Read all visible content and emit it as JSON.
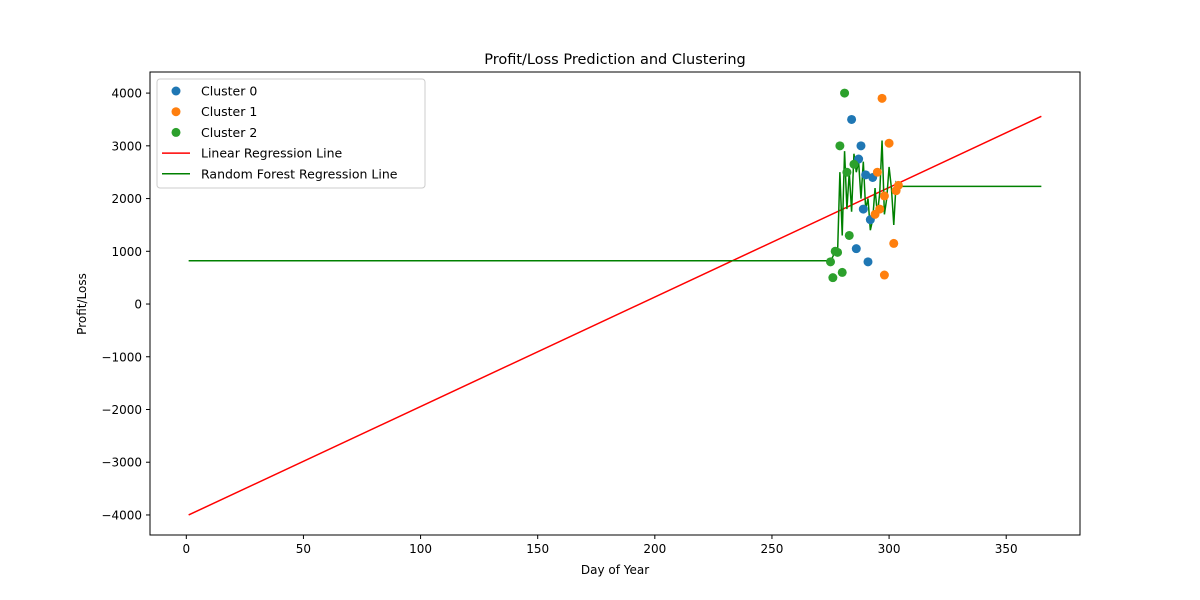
{
  "chart_data": {
    "type": "scatter",
    "title": "Profit/Loss Prediction and Clustering",
    "xlabel": "Day of Year",
    "ylabel": "Profit/Loss",
    "xlim": [
      -15.5,
      381.5
    ],
    "ylim": [
      -4380,
      4400
    ],
    "xticks": [
      0,
      50,
      100,
      150,
      200,
      250,
      300,
      350
    ],
    "yticks": [
      -4000,
      -3000,
      -2000,
      -1000,
      0,
      1000,
      2000,
      3000,
      4000
    ],
    "grid": false,
    "legend_position": "top-left",
    "series": [
      {
        "name": "Cluster 0",
        "kind": "scatter",
        "color": "#1f77b4",
        "points": [
          [
            284,
            3500
          ],
          [
            288,
            3000
          ],
          [
            287,
            2750
          ],
          [
            290,
            2450
          ],
          [
            293,
            2400
          ],
          [
            289,
            1800
          ],
          [
            292,
            1600
          ],
          [
            286,
            1050
          ],
          [
            291,
            800
          ]
        ]
      },
      {
        "name": "Cluster 1",
        "kind": "scatter",
        "color": "#ff7f0e",
        "points": [
          [
            297,
            3900
          ],
          [
            300,
            3050
          ],
          [
            295,
            2500
          ],
          [
            298,
            2050
          ],
          [
            303,
            2150
          ],
          [
            304,
            2250
          ],
          [
            296,
            1800
          ],
          [
            294,
            1700
          ],
          [
            302,
            1150
          ],
          [
            298,
            550
          ]
        ]
      },
      {
        "name": "Cluster 2",
        "kind": "scatter",
        "color": "#2ca02c",
        "points": [
          [
            281,
            4000
          ],
          [
            279,
            3000
          ],
          [
            282,
            2500
          ],
          [
            285,
            2650
          ],
          [
            283,
            1300
          ],
          [
            277,
            1000
          ],
          [
            278,
            980
          ],
          [
            275,
            800
          ],
          [
            280,
            600
          ],
          [
            276,
            500
          ]
        ]
      },
      {
        "name": "Linear Regression Line",
        "kind": "line",
        "color": "#ff0000",
        "points": [
          [
            1,
            -4000
          ],
          [
            365,
            3560
          ]
        ]
      },
      {
        "name": "Random Forest Regression Line",
        "kind": "line",
        "color": "#008000",
        "points": [
          [
            1,
            820
          ],
          [
            275,
            820
          ],
          [
            276,
            900
          ],
          [
            277,
            1000
          ],
          [
            278,
            950
          ],
          [
            279,
            2500
          ],
          [
            280,
            1300
          ],
          [
            281,
            2900
          ],
          [
            282,
            1800
          ],
          [
            283,
            2500
          ],
          [
            284,
            1750
          ],
          [
            285,
            2850
          ],
          [
            286,
            2500
          ],
          [
            287,
            2700
          ],
          [
            288,
            2000
          ],
          [
            289,
            2700
          ],
          [
            290,
            1800
          ],
          [
            291,
            2000
          ],
          [
            292,
            1400
          ],
          [
            293,
            1600
          ],
          [
            294,
            2200
          ],
          [
            295,
            1700
          ],
          [
            296,
            2100
          ],
          [
            297,
            3100
          ],
          [
            298,
            1700
          ],
          [
            299,
            2000
          ],
          [
            300,
            2600
          ],
          [
            301,
            2200
          ],
          [
            302,
            1500
          ],
          [
            303,
            2300
          ],
          [
            304,
            2230
          ],
          [
            365,
            2230
          ]
        ]
      }
    ]
  }
}
